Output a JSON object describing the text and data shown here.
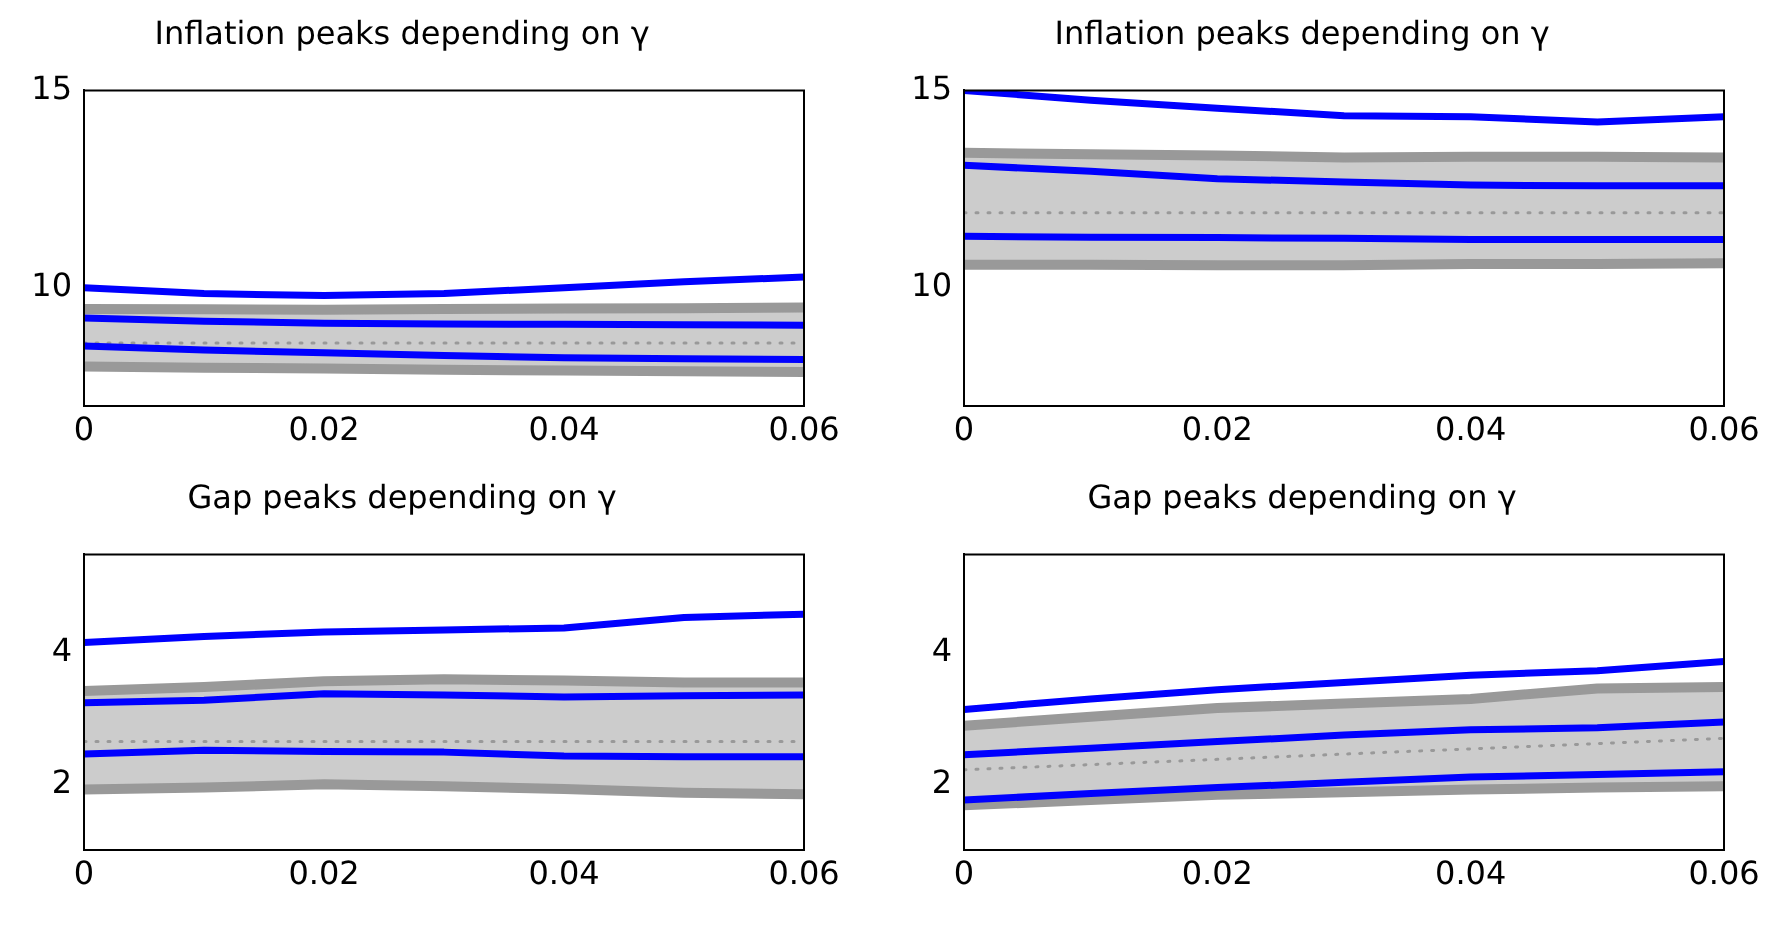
{
  "chart_data": [
    {
      "type": "line",
      "title": "Inflation peaks depending on γ",
      "x": [
        0,
        0.01,
        0.02,
        0.03,
        0.04,
        0.05,
        0.06
      ],
      "xlim": [
        0,
        0.06
      ],
      "xticks": [
        0,
        0.02,
        0.04,
        0.06
      ],
      "ylim": [
        7,
        15
      ],
      "yticks": [
        10,
        15
      ],
      "legend": false,
      "grid": false,
      "marker": "none",
      "series": [
        {
          "color": "#999999",
          "line_style": "dotted",
          "values": [
            8.6,
            8.6,
            8.6,
            8.6,
            8.6,
            8.6,
            8.6
          ],
          "lower": [
            8.0,
            7.97,
            7.95,
            7.92,
            7.9,
            7.88,
            7.86
          ],
          "upper": [
            9.46,
            9.45,
            9.44,
            9.46,
            9.47,
            9.48,
            9.5
          ]
        },
        {
          "color": "#999999",
          "values": [
            9.46,
            9.45,
            9.44,
            9.46,
            9.47,
            9.48,
            9.5
          ]
        },
        {
          "color": "#999999",
          "values": [
            8.0,
            7.97,
            7.95,
            7.92,
            7.9,
            7.88,
            7.86
          ]
        },
        {
          "color": "#0000ff",
          "values": [
            10.0,
            9.85,
            9.8,
            9.85,
            10.0,
            10.15,
            10.27
          ]
        },
        {
          "color": "#0000ff",
          "values": [
            9.23,
            9.15,
            9.1,
            9.08,
            9.07,
            9.06,
            9.05
          ]
        },
        {
          "color": "#0000ff",
          "values": [
            8.52,
            8.42,
            8.35,
            8.28,
            8.22,
            8.2,
            8.18
          ]
        }
      ]
    },
    {
      "type": "line",
      "title": "Inflation peaks depending on γ",
      "x": [
        0,
        0.01,
        0.02,
        0.03,
        0.04,
        0.05,
        0.06
      ],
      "xlim": [
        0,
        0.06
      ],
      "xticks": [
        0,
        0.02,
        0.04,
        0.06
      ],
      "ylim": [
        7,
        15
      ],
      "yticks": [
        10,
        15
      ],
      "legend": false,
      "grid": false,
      "marker": "none",
      "series": [
        {
          "color": "#999999",
          "line_style": "dotted",
          "values": [
            11.9,
            11.9,
            11.9,
            11.9,
            11.9,
            11.9,
            11.9
          ],
          "lower": [
            10.58,
            10.58,
            10.57,
            10.57,
            10.6,
            10.6,
            10.62
          ],
          "upper": [
            13.42,
            13.38,
            13.35,
            13.3,
            13.32,
            13.32,
            13.3
          ]
        },
        {
          "color": "#999999",
          "values": [
            13.42,
            13.38,
            13.35,
            13.3,
            13.32,
            13.32,
            13.3
          ]
        },
        {
          "color": "#999999",
          "values": [
            10.58,
            10.58,
            10.57,
            10.57,
            10.6,
            10.6,
            10.62
          ]
        },
        {
          "color": "#0000ff",
          "values": [
            15.0,
            14.75,
            14.55,
            14.36,
            14.33,
            14.2,
            14.33
          ]
        },
        {
          "color": "#0000ff",
          "values": [
            13.1,
            12.95,
            12.76,
            12.68,
            12.6,
            12.58,
            12.58
          ]
        },
        {
          "color": "#0000ff",
          "values": [
            11.3,
            11.28,
            11.27,
            11.25,
            11.22,
            11.22,
            11.22
          ]
        }
      ]
    },
    {
      "type": "line",
      "title": "Gap peaks depending on γ",
      "x": [
        0,
        0.01,
        0.02,
        0.03,
        0.04,
        0.05,
        0.06
      ],
      "xlim": [
        0,
        0.06
      ],
      "xticks": [
        0,
        0.02,
        0.04,
        0.06
      ],
      "ylim": [
        1,
        5.5
      ],
      "yticks": [
        2,
        4
      ],
      "legend": false,
      "grid": false,
      "marker": "none",
      "series": [
        {
          "color": "#999999",
          "line_style": "dotted",
          "values": [
            2.65,
            2.65,
            2.65,
            2.65,
            2.65,
            2.65,
            2.65
          ],
          "lower": [
            1.92,
            1.95,
            2.0,
            1.97,
            1.93,
            1.87,
            1.85
          ],
          "upper": [
            3.42,
            3.48,
            3.57,
            3.6,
            3.58,
            3.55,
            3.55
          ]
        },
        {
          "color": "#999999",
          "values": [
            3.42,
            3.48,
            3.57,
            3.6,
            3.58,
            3.55,
            3.55
          ]
        },
        {
          "color": "#999999",
          "values": [
            1.92,
            1.95,
            2.0,
            1.97,
            1.93,
            1.87,
            1.85
          ]
        },
        {
          "color": "#0000ff",
          "values": [
            4.16,
            4.25,
            4.32,
            4.35,
            4.38,
            4.54,
            4.59
          ]
        },
        {
          "color": "#0000ff",
          "values": [
            3.24,
            3.28,
            3.38,
            3.36,
            3.33,
            3.35,
            3.36
          ]
        },
        {
          "color": "#0000ff",
          "values": [
            2.46,
            2.52,
            2.5,
            2.49,
            2.43,
            2.42,
            2.42
          ]
        }
      ]
    },
    {
      "type": "line",
      "title": "Gap peaks depending on γ",
      "x": [
        0,
        0.01,
        0.02,
        0.03,
        0.04,
        0.05,
        0.06
      ],
      "xlim": [
        0,
        0.06
      ],
      "xticks": [
        0,
        0.02,
        0.04,
        0.06
      ],
      "ylim": [
        1,
        5.5
      ],
      "yticks": [
        2,
        4
      ],
      "legend": false,
      "grid": false,
      "marker": "none",
      "series": [
        {
          "color": "#999999",
          "line_style": "dotted",
          "values": [
            2.22,
            2.3,
            2.38,
            2.46,
            2.54,
            2.62,
            2.7
          ],
          "lower": [
            1.68,
            1.76,
            1.84,
            1.88,
            1.92,
            1.95,
            1.97
          ],
          "upper": [
            2.89,
            3.03,
            3.16,
            3.23,
            3.3,
            3.46,
            3.48
          ]
        },
        {
          "color": "#999999",
          "values": [
            2.89,
            3.03,
            3.16,
            3.23,
            3.3,
            3.46,
            3.48
          ]
        },
        {
          "color": "#999999",
          "values": [
            1.68,
            1.76,
            1.84,
            1.88,
            1.92,
            1.95,
            1.97
          ]
        },
        {
          "color": "#0000ff",
          "values": [
            3.14,
            3.3,
            3.44,
            3.55,
            3.66,
            3.73,
            3.87
          ]
        },
        {
          "color": "#0000ff",
          "values": [
            2.45,
            2.55,
            2.65,
            2.75,
            2.83,
            2.86,
            2.95
          ]
        },
        {
          "color": "#0000ff",
          "values": [
            1.76,
            1.86,
            1.95,
            2.03,
            2.11,
            2.15,
            2.19
          ]
        }
      ]
    }
  ]
}
